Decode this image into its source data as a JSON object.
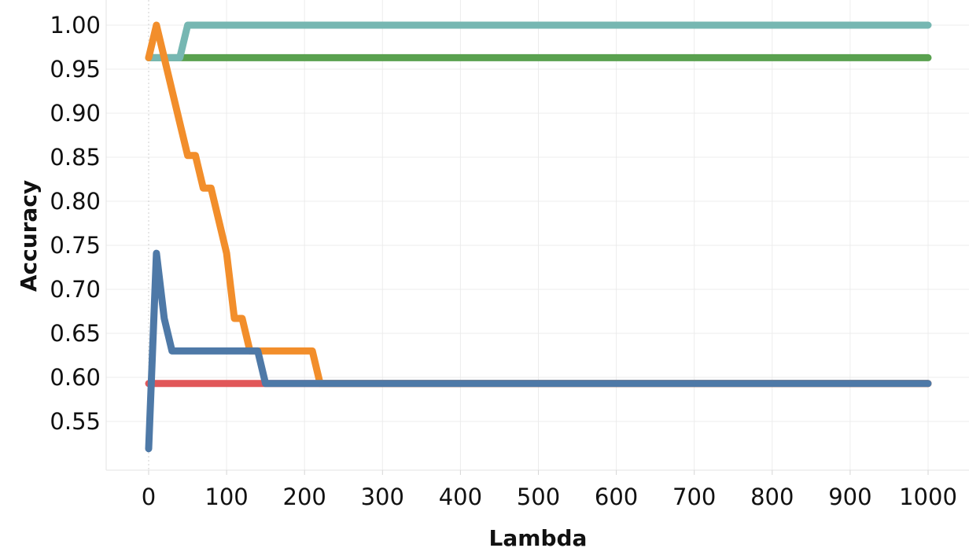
{
  "chart_data": {
    "type": "line",
    "title": "",
    "xlabel": "Lambda",
    "ylabel": "Accuracy",
    "xlim": [
      -50,
      1050
    ],
    "ylim": [
      0.5,
      1.0
    ],
    "x_ticks": [
      0,
      100,
      200,
      300,
      400,
      500,
      600,
      700,
      800,
      900,
      1000
    ],
    "x_tick_labels": [
      "0",
      "100",
      "200",
      "300",
      "400",
      "500",
      "600",
      "700",
      "800",
      "900",
      "1000"
    ],
    "y_ticks": [
      0.55,
      0.6,
      0.65,
      0.7,
      0.75,
      0.8,
      0.85,
      0.9,
      0.95,
      1.0
    ],
    "y_tick_labels": [
      "0.55",
      "0.60",
      "0.65",
      "0.70",
      "0.75",
      "0.80",
      "0.85",
      "0.90",
      "0.95",
      "1.00"
    ],
    "grid": true,
    "legend": "none",
    "series": [
      {
        "color": "#E15759",
        "points": [
          [
            0,
            0.593
          ],
          [
            150,
            0.593
          ],
          [
            1000,
            0.593
          ]
        ]
      },
      {
        "color": "#59A14F",
        "points": [
          [
            0,
            0.963
          ],
          [
            1000,
            0.963
          ]
        ]
      },
      {
        "color": "#76B7B2",
        "points": [
          [
            0,
            0.963
          ],
          [
            40,
            0.963
          ],
          [
            50,
            1.0
          ],
          [
            1000,
            1.0
          ]
        ]
      },
      {
        "color": "#F28E2B",
        "points": [
          [
            0,
            0.963
          ],
          [
            10,
            1.0
          ],
          [
            20,
            0.963
          ],
          [
            30,
            0.926
          ],
          [
            40,
            0.889
          ],
          [
            50,
            0.852
          ],
          [
            60,
            0.852
          ],
          [
            70,
            0.815
          ],
          [
            80,
            0.815
          ],
          [
            90,
            0.778
          ],
          [
            100,
            0.741
          ],
          [
            110,
            0.667
          ],
          [
            120,
            0.667
          ],
          [
            130,
            0.63
          ],
          [
            140,
            0.63
          ],
          [
            210,
            0.63
          ],
          [
            220,
            0.593
          ],
          [
            1000,
            0.593
          ]
        ]
      },
      {
        "color": "#4E79A7",
        "points": [
          [
            0,
            0.519
          ],
          [
            10,
            0.741
          ],
          [
            20,
            0.667
          ],
          [
            30,
            0.63
          ],
          [
            140,
            0.63
          ],
          [
            150,
            0.593
          ],
          [
            1000,
            0.593
          ]
        ]
      }
    ]
  }
}
